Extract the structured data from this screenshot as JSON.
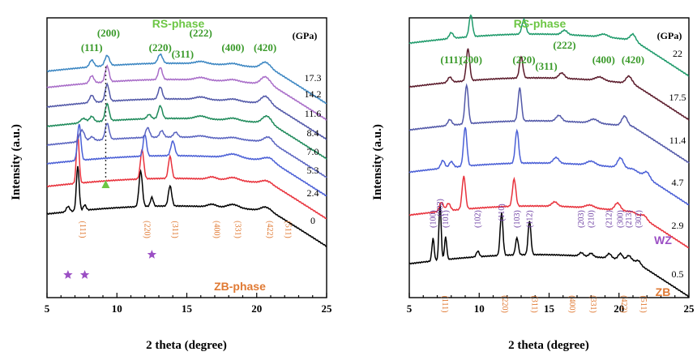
{
  "chart_data": [
    {
      "type": "line",
      "panel": "left",
      "xlabel": "2 theta (degree)",
      "ylabel": "Intensity (a.u.)",
      "xlim": [
        5,
        25
      ],
      "xticks": [
        5,
        10,
        15,
        20,
        25
      ],
      "units_label": "(GPa)",
      "phase_top": "RS-phase",
      "phase_bottom": "ZB-phase",
      "rs_peaks": [
        {
          "label": "(111)",
          "x": 8.2
        },
        {
          "label": "(200)",
          "x": 9.4
        },
        {
          "label": "(220)",
          "x": 13.1
        },
        {
          "label": "(311)",
          "x": 14.7
        },
        {
          "label": "(222)",
          "x": 16.0
        },
        {
          "label": "(400)",
          "x": 18.3
        },
        {
          "label": "(420)",
          "x": 20.6
        }
      ],
      "zb_peaks": [
        {
          "label": "(111)",
          "x": 7.2
        },
        {
          "label": "(220)",
          "x": 11.8
        },
        {
          "label": "(311)",
          "x": 13.8
        },
        {
          "label": "(400)",
          "x": 16.8
        },
        {
          "label": "(331)",
          "x": 18.3
        },
        {
          "label": "(422)",
          "x": 20.6
        },
        {
          "label": "(511)",
          "x": 21.9
        }
      ],
      "series": [
        {
          "name": "0",
          "color": "#000000",
          "peaks": [
            [
              6.5,
              0.12,
              0.12
            ],
            [
              7.2,
              1.0,
              0.1
            ],
            [
              7.7,
              0.12,
              0.1
            ],
            [
              11.7,
              0.8,
              0.12
            ],
            [
              12.5,
              0.2,
              0.1
            ],
            [
              13.8,
              0.45,
              0.12
            ],
            [
              16.8,
              0.06,
              0.3
            ],
            [
              18.3,
              0.08,
              0.4
            ],
            [
              20.6,
              0.08,
              0.3
            ]
          ]
        },
        {
          "name": "2.4",
          "color": "#e8323c",
          "peaks": [
            [
              7.2,
              1.0,
              0.1
            ],
            [
              11.8,
              0.6,
              0.12
            ],
            [
              13.8,
              0.45,
              0.12
            ],
            [
              16.8,
              0.05,
              0.3
            ],
            [
              18.3,
              0.06,
              0.4
            ],
            [
              20.6,
              0.05,
              0.3
            ]
          ]
        },
        {
          "name": "5.3",
          "color": "#4a5fd6",
          "peaks": [
            [
              7.3,
              1.0,
              0.12
            ],
            [
              12.0,
              0.6,
              0.12
            ],
            [
              14.0,
              0.4,
              0.14
            ],
            [
              18.3,
              0.1,
              0.5
            ],
            [
              20.8,
              0.08,
              0.4
            ]
          ]
        },
        {
          "name": "7.0",
          "color": "#5a64c0",
          "peaks": [
            [
              7.5,
              0.35,
              0.18
            ],
            [
              8.2,
              0.12,
              0.15
            ],
            [
              9.3,
              0.5,
              0.14
            ],
            [
              12.2,
              0.3,
              0.14
            ],
            [
              13.2,
              0.2,
              0.14
            ],
            [
              14.2,
              0.15,
              0.15
            ],
            [
              16.0,
              0.05,
              0.4
            ],
            [
              18.3,
              0.05,
              0.4
            ],
            [
              20.8,
              0.15,
              0.3
            ]
          ]
        },
        {
          "name": "8.4",
          "color": "#1e8a5a",
          "peaks": [
            [
              7.6,
              0.15,
              0.2
            ],
            [
              8.2,
              0.2,
              0.15
            ],
            [
              9.3,
              0.6,
              0.14
            ],
            [
              12.3,
              0.15,
              0.14
            ],
            [
              13.1,
              0.45,
              0.14
            ],
            [
              16.0,
              0.1,
              0.4
            ],
            [
              18.3,
              0.08,
              0.4
            ],
            [
              20.7,
              0.25,
              0.3
            ]
          ]
        },
        {
          "name": "11.6",
          "color": "#5258a8",
          "peaks": [
            [
              8.2,
              0.3,
              0.15
            ],
            [
              9.3,
              0.7,
              0.14
            ],
            [
              13.1,
              0.5,
              0.14
            ],
            [
              16.0,
              0.1,
              0.4
            ],
            [
              18.3,
              0.08,
              0.4
            ],
            [
              20.6,
              0.3,
              0.3
            ]
          ]
        },
        {
          "name": "14.2",
          "color": "#a86cc8",
          "peaks": [
            [
              8.2,
              0.3,
              0.15
            ],
            [
              9.3,
              0.65,
              0.14
            ],
            [
              13.1,
              0.5,
              0.14
            ],
            [
              16.0,
              0.1,
              0.4
            ],
            [
              18.3,
              0.08,
              0.4
            ],
            [
              20.6,
              0.3,
              0.3
            ]
          ]
        },
        {
          "name": "17.3",
          "color": "#3b86c2",
          "peaks": [
            [
              8.2,
              0.3,
              0.15
            ],
            [
              9.3,
              0.45,
              0.16
            ],
            [
              13.1,
              0.4,
              0.16
            ],
            [
              16.0,
              0.1,
              0.4
            ],
            [
              18.3,
              0.08,
              0.4
            ],
            [
              20.6,
              0.25,
              0.3
            ]
          ]
        }
      ],
      "annotations": {
        "arrow_x": 9.2,
        "stars_x": [
          6.5,
          7.7,
          12.5
        ]
      }
    },
    {
      "type": "line",
      "panel": "right",
      "xlabel": "2 theta (degree)",
      "ylabel": "Intensity (a.u.)",
      "xlim": [
        5,
        25
      ],
      "xticks": [
        5,
        10,
        15,
        20,
        25
      ],
      "units_label": "(GPa)",
      "phase_top": "RS-phase",
      "wz_label": "WZ",
      "zb_label": "ZB",
      "rs_peaks": [
        {
          "label": "(111)",
          "x": 8.0
        },
        {
          "label": "(200)",
          "x": 9.4
        },
        {
          "label": "(220)",
          "x": 13.2
        },
        {
          "label": "(311)",
          "x": 14.8
        },
        {
          "label": "(222)",
          "x": 16.1
        },
        {
          "label": "(400)",
          "x": 18.9
        },
        {
          "label": "(420)",
          "x": 21.0
        }
      ],
      "wz_peaks": [
        {
          "label": "(100)",
          "x": 6.7
        },
        {
          "label": "(002)",
          "x": 7.2
        },
        {
          "label": "(101)",
          "x": 7.6
        },
        {
          "label": "(102)",
          "x": 9.9
        },
        {
          "label": "(110)",
          "x": 11.6
        },
        {
          "label": "(103)",
          "x": 12.7
        },
        {
          "label": "(112)",
          "x": 13.6
        },
        {
          "label": "(203)",
          "x": 17.3
        },
        {
          "label": "(210)",
          "x": 18.0
        },
        {
          "label": "(212)",
          "x": 19.3
        },
        {
          "label": "(300)",
          "x": 20.1
        },
        {
          "label": "(213)",
          "x": 20.7
        },
        {
          "label": "(302)",
          "x": 21.4
        }
      ],
      "zb_peaks": [
        {
          "label": "(111)",
          "x": 7.2
        },
        {
          "label": "(220)",
          "x": 11.5
        },
        {
          "label": "(311)",
          "x": 13.6
        },
        {
          "label": "(400)",
          "x": 16.3
        },
        {
          "label": "(331)",
          "x": 17.8
        },
        {
          "label": "(422)",
          "x": 20.0
        },
        {
          "label": "(511)",
          "x": 21.4
        }
      ],
      "series": [
        {
          "name": "0.5",
          "color": "#000000",
          "peaks": [
            [
              6.7,
              0.4,
              0.08
            ],
            [
              7.2,
              1.0,
              0.08
            ],
            [
              7.6,
              0.4,
              0.08
            ],
            [
              9.9,
              0.1,
              0.1
            ],
            [
              11.6,
              0.75,
              0.1
            ],
            [
              12.7,
              0.3,
              0.1
            ],
            [
              13.6,
              0.6,
              0.1
            ],
            [
              17.3,
              0.06,
              0.15
            ],
            [
              18.0,
              0.06,
              0.15
            ],
            [
              19.3,
              0.08,
              0.15
            ],
            [
              20.1,
              0.1,
              0.15
            ],
            [
              20.7,
              0.08,
              0.15
            ],
            [
              21.4,
              0.06,
              0.15
            ]
          ]
        },
        {
          "name": "2.9",
          "color": "#e8323c",
          "peaks": [
            [
              7.3,
              0.25,
              0.14
            ],
            [
              7.8,
              0.2,
              0.14
            ],
            [
              8.9,
              0.9,
              0.12
            ],
            [
              12.5,
              0.75,
              0.12
            ],
            [
              15.4,
              0.12,
              0.2
            ],
            [
              17.9,
              0.08,
              0.3
            ],
            [
              19.9,
              0.2,
              0.2
            ],
            [
              21.8,
              0.1,
              0.2
            ]
          ]
        },
        {
          "name": "4.7",
          "color": "#4a5fd6",
          "peaks": [
            [
              7.4,
              0.2,
              0.14
            ],
            [
              8.0,
              0.15,
              0.14
            ],
            [
              9.0,
              1.0,
              0.12
            ],
            [
              12.7,
              0.85,
              0.12
            ],
            [
              15.5,
              0.15,
              0.2
            ],
            [
              18.0,
              0.1,
              0.3
            ],
            [
              20.1,
              0.25,
              0.2
            ],
            [
              22.0,
              0.15,
              0.2
            ]
          ]
        },
        {
          "name": "11.4",
          "color": "#5258a8",
          "peaks": [
            [
              7.9,
              0.15,
              0.14
            ],
            [
              9.1,
              1.0,
              0.12
            ],
            [
              12.9,
              0.85,
              0.12
            ],
            [
              15.7,
              0.15,
              0.2
            ],
            [
              18.2,
              0.1,
              0.3
            ],
            [
              20.4,
              0.25,
              0.2
            ]
          ]
        },
        {
          "name": "17.5",
          "color": "#5a1a2a",
          "peaks": [
            [
              7.9,
              0.15,
              0.14
            ],
            [
              9.2,
              0.9,
              0.12
            ],
            [
              13.0,
              0.6,
              0.12
            ],
            [
              15.9,
              0.15,
              0.2
            ],
            [
              18.6,
              0.1,
              0.3
            ],
            [
              20.7,
              0.2,
              0.2
            ]
          ]
        },
        {
          "name": "22",
          "color": "#1e9a6a",
          "peaks": [
            [
              8.0,
              0.2,
              0.14
            ],
            [
              9.4,
              0.75,
              0.12
            ],
            [
              13.2,
              0.5,
              0.14
            ],
            [
              16.1,
              0.15,
              0.2
            ],
            [
              18.9,
              0.1,
              0.3
            ],
            [
              21.0,
              0.2,
              0.2
            ]
          ]
        }
      ]
    }
  ]
}
